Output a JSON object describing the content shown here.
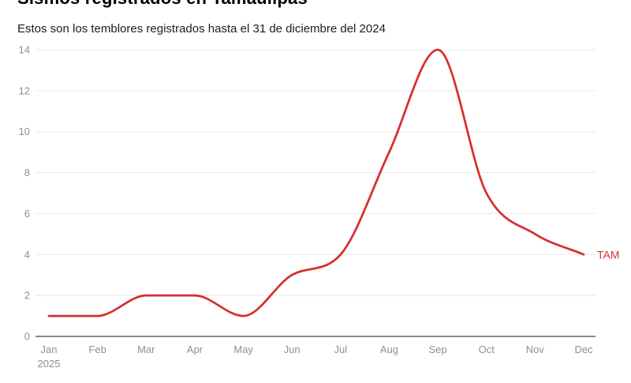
{
  "header": {
    "title": "Sismos registrados en Tamaulipas",
    "subtitle": "Estos son los temblores registrados hasta el 31 de diciembre del 2024"
  },
  "chart_data": {
    "type": "line",
    "title": "Sismos registrados en Tamaulipas",
    "subtitle": "Estos son los temblores registrados hasta el 31 de diciembre del 2024",
    "categories": [
      "Jan",
      "Feb",
      "Mar",
      "Apr",
      "May",
      "Jun",
      "Jul",
      "Aug",
      "Sep",
      "Oct",
      "Nov",
      "Dec"
    ],
    "x_axis_year_label": "2025",
    "series": [
      {
        "name": "TAM",
        "values": [
          1,
          1,
          2,
          2,
          1,
          3,
          4,
          9,
          14,
          7,
          5,
          4
        ],
        "color": "#d62f2f"
      }
    ],
    "ylabel": "",
    "xlabel": "",
    "ylim": [
      0,
      14
    ],
    "yticks": [
      0,
      2,
      4,
      6,
      8,
      10,
      12,
      14
    ],
    "grid": true,
    "legend_position": "inline-end-of-line",
    "curve": "smooth-monotone"
  },
  "colors": {
    "line": "#d62f2f",
    "series_label": "#d62f2f",
    "gridline": "#e8e8e8",
    "baseline_axis": "#8a8a8a",
    "tick_label": "#8f8f8f",
    "title_text": "#000000",
    "subtitle_text": "#1d1d1d"
  }
}
